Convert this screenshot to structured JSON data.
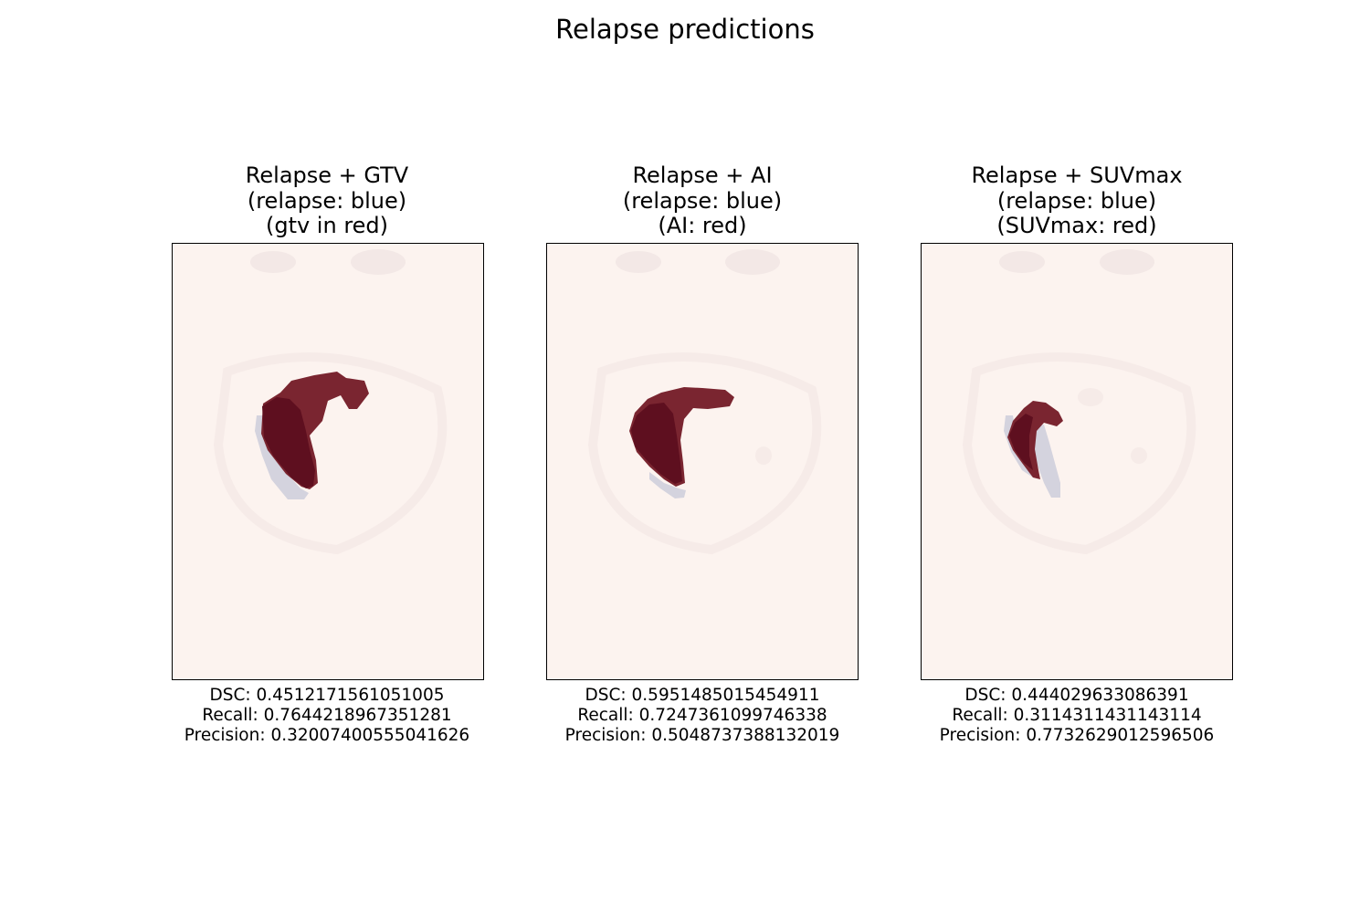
{
  "figure": {
    "title": "Relapse predictions"
  },
  "colors": {
    "background": "#fcf3ef",
    "overlay_red": "#7a2530",
    "overlap_dark": "#5e0f1f",
    "relapse_grey": "#d4d3de"
  },
  "panels": [
    {
      "title_lines": [
        "Relapse + GTV",
        "(relapse: blue)",
        "(gtv in red)"
      ],
      "metrics": [
        "DSC: 0.4512171561051005",
        "Recall: 0.7644218967351281",
        "Precision: 0.32007400555041626"
      ]
    },
    {
      "title_lines": [
        "Relapse + AI",
        "(relapse: blue)",
        "(AI: red)"
      ],
      "metrics": [
        "DSC: 0.5951485015454911",
        "Recall: 0.7247361099746338",
        "Precision: 0.5048737388132019"
      ]
    },
    {
      "title_lines": [
        "Relapse + SUVmax",
        "(relapse: blue)",
        "(SUVmax: red)"
      ],
      "metrics": [
        "DSC: 0.444029633086391",
        "Recall: 0.3114311431143114",
        "Precision: 0.7732629012596506"
      ]
    }
  ]
}
